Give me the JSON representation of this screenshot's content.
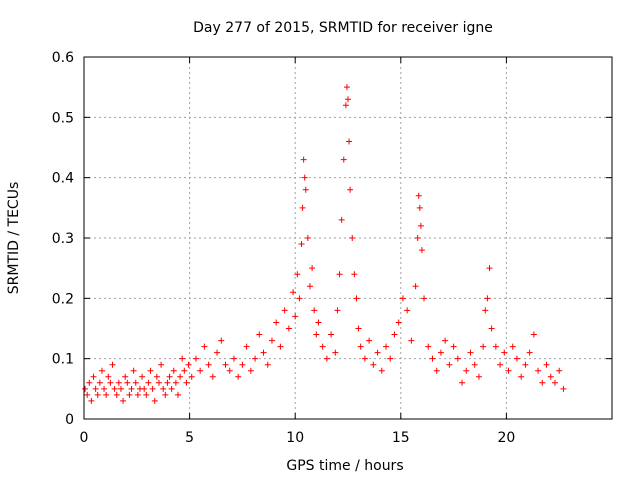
{
  "chart_data": {
    "type": "scatter",
    "title": "Day 277 of 2015, SRMTID for receiver igne",
    "xlabel": "GPS time / hours",
    "ylabel": "SRMTID / TECUs",
    "xlim": [
      0,
      25
    ],
    "ylim": [
      0,
      0.6
    ],
    "xticks": [
      0,
      5,
      10,
      15,
      20
    ],
    "yticks": [
      0,
      0.1,
      0.2,
      0.3,
      0.4,
      0.5,
      0.6
    ],
    "grid": true,
    "marker": "+",
    "series": [
      {
        "name": "SRMTID",
        "color": "#ff0000",
        "x": [
          0.05,
          0.15,
          0.25,
          0.35,
          0.45,
          0.55,
          0.65,
          0.75,
          0.85,
          0.95,
          1.05,
          1.15,
          1.25,
          1.35,
          1.45,
          1.55,
          1.65,
          1.75,
          1.85,
          1.95,
          2.05,
          2.15,
          2.25,
          2.35,
          2.45,
          2.55,
          2.65,
          2.75,
          2.85,
          2.95,
          3.05,
          3.15,
          3.25,
          3.35,
          3.45,
          3.55,
          3.65,
          3.75,
          3.85,
          3.95,
          4.05,
          4.15,
          4.25,
          4.35,
          4.45,
          4.55,
          4.65,
          4.75,
          4.85,
          4.95,
          5.1,
          5.3,
          5.5,
          5.7,
          5.9,
          6.1,
          6.3,
          6.5,
          6.7,
          6.9,
          7.1,
          7.3,
          7.5,
          7.7,
          7.9,
          8.1,
          8.3,
          8.5,
          8.7,
          8.9,
          9.1,
          9.3,
          9.5,
          9.7,
          9.9,
          10.0,
          10.1,
          10.2,
          10.3,
          10.35,
          10.4,
          10.45,
          10.5,
          10.6,
          10.7,
          10.8,
          10.9,
          11.0,
          11.1,
          11.3,
          11.5,
          11.7,
          11.9,
          12.0,
          12.1,
          12.2,
          12.3,
          12.4,
          12.45,
          12.5,
          12.55,
          12.6,
          12.7,
          12.8,
          12.9,
          13.0,
          13.1,
          13.3,
          13.5,
          13.7,
          13.9,
          14.1,
          14.3,
          14.5,
          14.7,
          14.9,
          15.1,
          15.3,
          15.5,
          15.7,
          15.8,
          15.85,
          15.9,
          15.95,
          16.0,
          16.1,
          16.3,
          16.5,
          16.7,
          16.9,
          17.1,
          17.3,
          17.5,
          17.7,
          17.9,
          18.1,
          18.3,
          18.5,
          18.7,
          18.9,
          19.0,
          19.1,
          19.2,
          19.3,
          19.5,
          19.7,
          19.9,
          20.1,
          20.3,
          20.5,
          20.7,
          20.9,
          21.1,
          21.3,
          21.5,
          21.7,
          21.9,
          22.1,
          22.3,
          22.5,
          22.7
        ],
        "y": [
          0.05,
          0.04,
          0.06,
          0.03,
          0.07,
          0.05,
          0.04,
          0.06,
          0.08,
          0.05,
          0.04,
          0.07,
          0.06,
          0.09,
          0.05,
          0.04,
          0.06,
          0.05,
          0.03,
          0.07,
          0.06,
          0.04,
          0.05,
          0.08,
          0.06,
          0.04,
          0.05,
          0.07,
          0.05,
          0.04,
          0.06,
          0.08,
          0.05,
          0.03,
          0.07,
          0.06,
          0.09,
          0.05,
          0.04,
          0.06,
          0.07,
          0.05,
          0.08,
          0.06,
          0.04,
          0.07,
          0.1,
          0.08,
          0.06,
          0.09,
          0.07,
          0.1,
          0.08,
          0.12,
          0.09,
          0.07,
          0.11,
          0.13,
          0.09,
          0.08,
          0.1,
          0.07,
          0.09,
          0.12,
          0.08,
          0.1,
          0.14,
          0.11,
          0.09,
          0.13,
          0.16,
          0.12,
          0.18,
          0.15,
          0.21,
          0.17,
          0.24,
          0.2,
          0.29,
          0.35,
          0.43,
          0.4,
          0.38,
          0.3,
          0.22,
          0.25,
          0.18,
          0.14,
          0.16,
          0.12,
          0.1,
          0.14,
          0.11,
          0.18,
          0.24,
          0.33,
          0.43,
          0.52,
          0.55,
          0.53,
          0.46,
          0.38,
          0.3,
          0.24,
          0.2,
          0.15,
          0.12,
          0.1,
          0.13,
          0.09,
          0.11,
          0.08,
          0.12,
          0.1,
          0.14,
          0.16,
          0.2,
          0.18,
          0.13,
          0.22,
          0.3,
          0.37,
          0.35,
          0.32,
          0.28,
          0.2,
          0.12,
          0.1,
          0.08,
          0.11,
          0.13,
          0.09,
          0.12,
          0.1,
          0.06,
          0.08,
          0.11,
          0.09,
          0.07,
          0.12,
          0.18,
          0.2,
          0.25,
          0.15,
          0.12,
          0.09,
          0.11,
          0.08,
          0.12,
          0.1,
          0.07,
          0.09,
          0.11,
          0.14,
          0.08,
          0.06,
          0.09,
          0.07,
          0.06,
          0.08,
          0.05
        ]
      }
    ]
  }
}
